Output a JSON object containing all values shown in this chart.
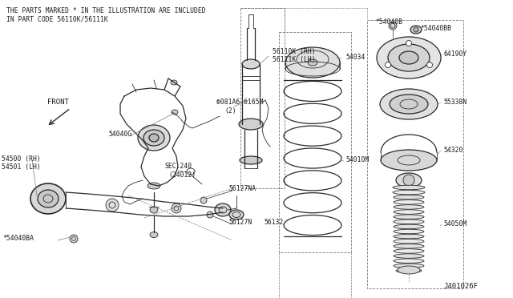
{
  "bg_color": "#ffffff",
  "line_color": "#2a2a2a",
  "text_color": "#1a1a1a",
  "fig_width": 6.4,
  "fig_height": 3.72,
  "dpi": 100,
  "header_line1": "THE PARTS MARKED * IN THE ILLUSTRATION ARE INCLUDED",
  "header_line2": "IN PART CODE 56110K/56111K",
  "footer": "J401026F",
  "label_fontsize": 5.8,
  "header_fontsize": 5.8
}
